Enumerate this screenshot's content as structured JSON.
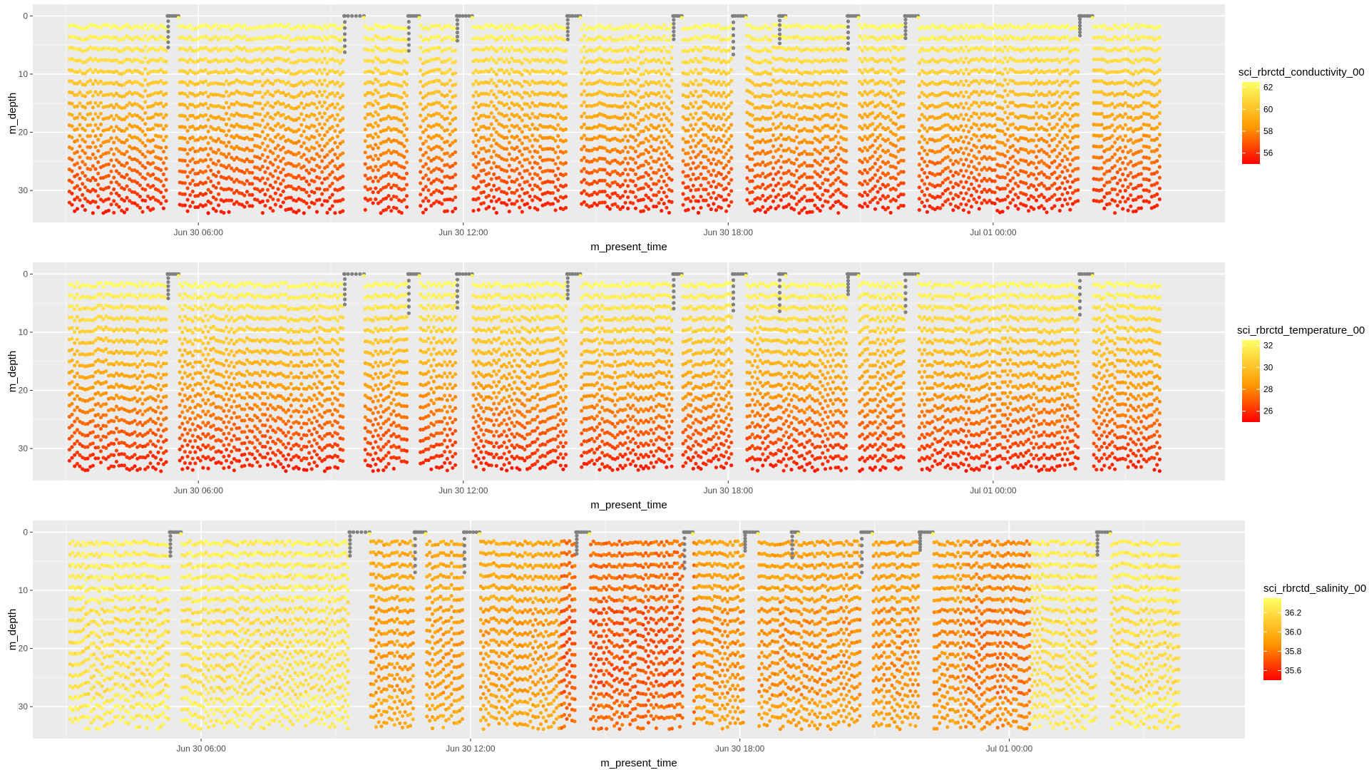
{
  "chart_data": [
    {
      "type": "scatter",
      "title": "",
      "xlabel": "m_present_time",
      "ylabel": "m_depth",
      "x_ticks": [
        "Jun 30 06:00",
        "Jun 30 12:00",
        "Jun 30 18:00",
        "Jul 01 00:00"
      ],
      "x_tick_hours": [
        6,
        12,
        18,
        24
      ],
      "xlim_hours": [
        2.25,
        29.25
      ],
      "y_ticks": [
        "0",
        "10",
        "20",
        "30"
      ],
      "ylim": [
        -2,
        35.5
      ],
      "y_reversed": true,
      "grid": true,
      "legend": {
        "position": "right",
        "title": "sci_rbrctd_conductivity_00",
        "ticks": [
          "62",
          "60",
          "58",
          "56"
        ],
        "tick_values": [
          62,
          60,
          58,
          56
        ],
        "range": [
          55,
          62.5
        ]
      },
      "colors": {
        "high": "#ffff66",
        "mid": "#ff9900",
        "low": "#ff0000",
        "na": "#808080",
        "panel": "#ebebeb"
      },
      "series": [
        {
          "variable": "sci_rbrctd_conductivity_00",
          "depth_range": [
            1.5,
            33.8
          ],
          "value_range": [
            56.5,
            62
          ]
        }
      ]
    },
    {
      "type": "scatter",
      "title": "",
      "xlabel": "m_present_time",
      "ylabel": "m_depth",
      "x_ticks": [
        "Jun 30 06:00",
        "Jun 30 12:00",
        "Jun 30 18:00",
        "Jul 01 00:00"
      ],
      "x_tick_hours": [
        6,
        12,
        18,
        24
      ],
      "xlim_hours": [
        2.25,
        29.25
      ],
      "y_ticks": [
        "0",
        "10",
        "20",
        "30"
      ],
      "ylim": [
        -2,
        35.5
      ],
      "y_reversed": true,
      "grid": true,
      "legend": {
        "position": "right",
        "title": "sci_rbrctd_temperature_00",
        "ticks": [
          "32",
          "30",
          "28",
          "26"
        ],
        "tick_values": [
          32,
          30,
          28,
          26
        ],
        "range": [
          25,
          32.5
        ]
      },
      "colors": {
        "high": "#ffff66",
        "mid": "#ff9900",
        "low": "#ff0000",
        "na": "#808080",
        "panel": "#ebebeb"
      },
      "series": [
        {
          "variable": "sci_rbrctd_temperature_00",
          "depth_range": [
            1.5,
            33.8
          ],
          "value_range": [
            26.5,
            32
          ]
        }
      ]
    },
    {
      "type": "scatter",
      "title": "",
      "xlabel": "m_present_time",
      "ylabel": "m_depth",
      "x_ticks": [
        "Jun 30 06:00",
        "Jun 30 12:00",
        "Jun 30 18:00",
        "Jul 01 00:00"
      ],
      "x_tick_hours": [
        6,
        12,
        18,
        24
      ],
      "xlim_hours": [
        2.25,
        29.25
      ],
      "y_ticks": [
        "0",
        "10",
        "20",
        "30"
      ],
      "ylim": [
        -2,
        35.5
      ],
      "y_reversed": true,
      "grid": true,
      "legend": {
        "position": "right",
        "title": "sci_rbrctd_salinity_00",
        "ticks": [
          "36.2",
          "36.0",
          "35.8",
          "35.6"
        ],
        "tick_values": [
          36.2,
          36.0,
          35.8,
          35.6
        ],
        "range": [
          35.5,
          36.35
        ]
      },
      "colors": {
        "high": "#ffff66",
        "mid": "#ff9900",
        "low": "#ff0000",
        "na": "#808080",
        "panel": "#ebebeb"
      },
      "series": [
        {
          "variable": "sci_rbrctd_salinity_00",
          "depth_range": [
            1.5,
            33.8
          ],
          "value_range": [
            35.55,
            36.3
          ]
        }
      ]
    }
  ]
}
